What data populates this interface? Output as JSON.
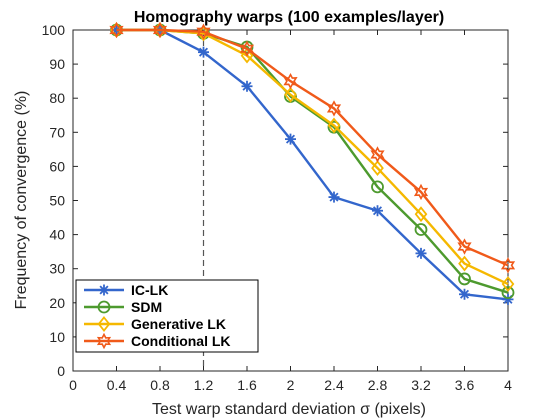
{
  "chart_data": {
    "type": "line",
    "title": "Homography warps (100 examples/layer)",
    "xlabel": "Test warp standard deviation σ (pixels)",
    "ylabel": "Frequency of convergence (%)",
    "xlim": [
      0,
      4
    ],
    "ylim": [
      0,
      100
    ],
    "xticks": [
      "0",
      "0.4",
      "0.8",
      "1.2",
      "1.6",
      "2",
      "2.4",
      "2.8",
      "3.2",
      "3.6",
      "4"
    ],
    "yticks": [
      "0",
      "10",
      "20",
      "30",
      "40",
      "50",
      "60",
      "70",
      "80",
      "90",
      "100"
    ],
    "x": [
      0.4,
      0.8,
      1.2,
      1.6,
      2.0,
      2.4,
      2.8,
      3.2,
      3.6,
      4.0
    ],
    "vertical_reference_line_x": 1.2,
    "legend_position": "bottom-left",
    "grid": false,
    "series": [
      {
        "name": "IC-LK",
        "color": "#3366cc",
        "marker": "asterisk",
        "values": [
          100,
          100,
          93.5,
          83.5,
          68,
          51,
          47,
          34.5,
          22.5,
          21
        ]
      },
      {
        "name": "SDM",
        "color": "#4d9a2e",
        "marker": "circle",
        "values": [
          100,
          100,
          99,
          95,
          80.5,
          71.5,
          54,
          41.5,
          27,
          23
        ]
      },
      {
        "name": "Generative LK",
        "color": "#f5b800",
        "marker": "diamond",
        "values": [
          100,
          100,
          99,
          92.5,
          81,
          72,
          59.5,
          46,
          31.5,
          25.5
        ]
      },
      {
        "name": "Conditional LK",
        "color": "#f05a1a",
        "marker": "hexagram",
        "values": [
          100,
          100,
          99.5,
          94.5,
          85,
          77,
          63.5,
          52.5,
          36.5,
          31
        ]
      }
    ]
  }
}
